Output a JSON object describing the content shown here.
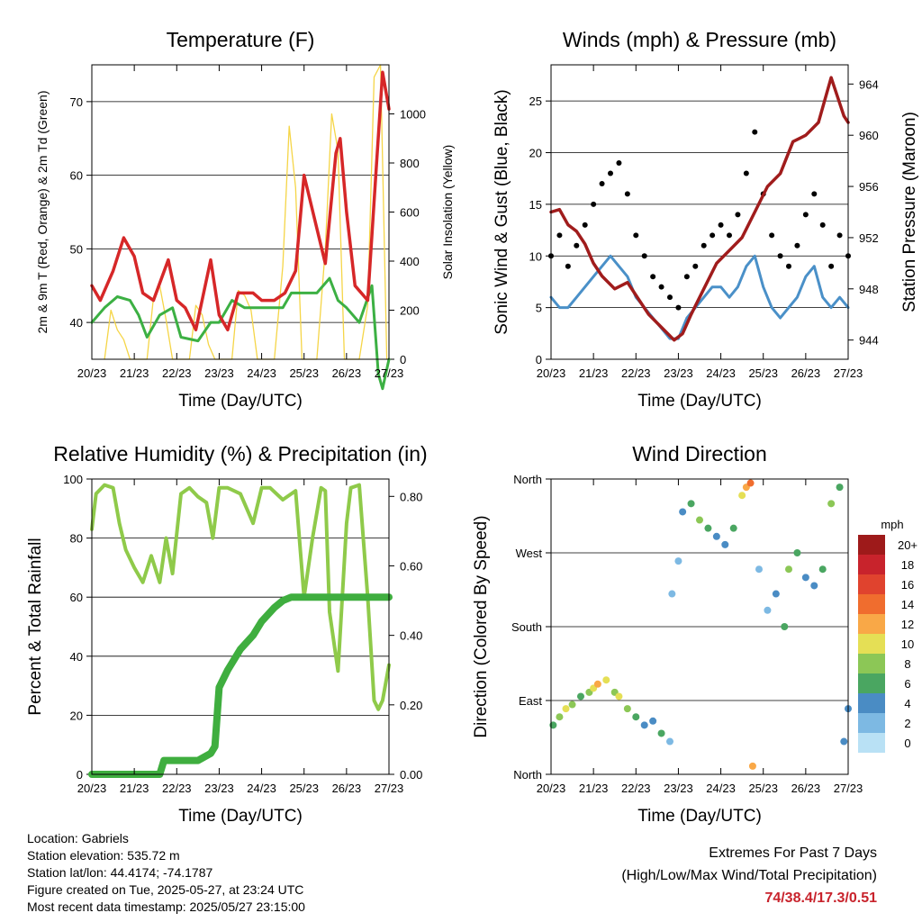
{
  "colors": {
    "temp": "#d62728",
    "dew": "#3cb043",
    "solar": "#f5d547",
    "gust": "#000000",
    "wind": "#4a90c8",
    "pressure": "#a01c1c",
    "rh": "#8fca4a",
    "precip": "#3fae3f"
  },
  "panels": {
    "temperature": {
      "title": "Temperature (F)",
      "ylabel_left": "2m & 9m T (Red, Orange) & 2m Td (Green)",
      "ylabel_right": "Solar Insolation (Yellow)",
      "xlabel": "Time (Day/UTC)",
      "left_ticks": [
        "40",
        "50",
        "60",
        "70"
      ],
      "right_ticks": [
        "0",
        "200",
        "400",
        "600",
        "800",
        "1000"
      ],
      "x_ticks": [
        "20/23",
        "21/23",
        "22/23",
        "23/23",
        "24/23",
        "25/23",
        "26/23",
        "27/23"
      ]
    },
    "winds": {
      "title": "Winds (mph) & Pressure (mb)",
      "ylabel_left": "Sonic Wind & Gust (Blue, Black)",
      "ylabel_right": "Station Pressure (Maroon)",
      "xlabel": "Time (Day/UTC)",
      "left_ticks": [
        "0",
        "5",
        "10",
        "15",
        "20",
        "25"
      ],
      "right_ticks": [
        "944",
        "948",
        "952",
        "956",
        "960",
        "964"
      ],
      "x_ticks": [
        "20/23",
        "21/23",
        "22/23",
        "23/23",
        "24/23",
        "25/23",
        "26/23",
        "27/23"
      ]
    },
    "humidity": {
      "title": "Relative Humidity (%) & Precipitation (in)",
      "ylabel_left": "Percent & Total Rainfall",
      "xlabel": "Time (Day/UTC)",
      "left_ticks": [
        "0",
        "20",
        "40",
        "60",
        "80",
        "100"
      ],
      "right_ticks": [
        "0.00",
        "0.20",
        "0.40",
        "0.60",
        "0.80"
      ],
      "x_ticks": [
        "20/23",
        "21/23",
        "22/23",
        "23/23",
        "24/23",
        "25/23",
        "26/23",
        "27/23"
      ]
    },
    "direction": {
      "title": "Wind Direction",
      "ylabel_left": "Direction (Colored By Speed)",
      "xlabel": "Time (Day/UTC)",
      "left_ticks": [
        "North",
        "East",
        "South",
        "West",
        "North"
      ],
      "x_ticks": [
        "20/23",
        "21/23",
        "22/23",
        "23/23",
        "24/23",
        "25/23",
        "26/23",
        "27/23"
      ],
      "legend_title": "mph",
      "legend_labels": [
        "20+",
        "18",
        "16",
        "14",
        "12",
        "10",
        "8",
        "6",
        "4",
        "2",
        "0"
      ],
      "legend_colors": [
        "#9e1a1a",
        "#c8232c",
        "#e0432e",
        "#f06d2e",
        "#f9a847",
        "#e5df55",
        "#8cc756",
        "#4aa661",
        "#4a8cc4",
        "#7db9e3",
        "#b9e1f5"
      ]
    }
  },
  "chart_data": [
    {
      "type": "line",
      "title": "Temperature (F)",
      "xlabel": "Time (Day/UTC)",
      "ylabel": "2m & 9m T (Red, Orange) & 2m Td (Green)",
      "y2label": "Solar Insolation (Yellow)",
      "ylim": [
        35,
        75
      ],
      "y2lim": [
        0,
        1200
      ],
      "xlim": [
        0,
        7
      ],
      "x_tick_labels": [
        "20/23",
        "21/23",
        "22/23",
        "23/23",
        "24/23",
        "25/23",
        "26/23",
        "27/23"
      ],
      "series": [
        {
          "name": "2m & 9m T (Red, Orange)",
          "axis": "left",
          "x": [
            0,
            0.2,
            0.5,
            0.75,
            1.0,
            1.2,
            1.45,
            1.8,
            2.0,
            2.2,
            2.45,
            2.8,
            3.0,
            3.2,
            3.45,
            3.8,
            4.0,
            4.3,
            4.55,
            4.8,
            5.0,
            5.25,
            5.5,
            5.75,
            5.85,
            6.0,
            6.2,
            6.5,
            6.7,
            6.85,
            7.0
          ],
          "y": [
            45,
            43,
            47,
            51.5,
            49,
            44,
            43,
            48.5,
            43,
            42,
            39,
            48.5,
            41,
            39,
            44,
            44,
            43,
            43,
            44,
            47,
            60,
            54,
            48,
            63,
            65,
            55,
            45,
            43,
            61,
            74,
            69
          ]
        },
        {
          "name": "2m Td (Green)",
          "axis": "left",
          "x": [
            0,
            0.3,
            0.6,
            0.9,
            1.1,
            1.3,
            1.6,
            1.9,
            2.1,
            2.5,
            2.8,
            3.0,
            3.3,
            3.6,
            3.9,
            4.2,
            4.5,
            4.7,
            5.0,
            5.3,
            5.6,
            5.8,
            6.0,
            6.3,
            6.6,
            6.75,
            6.85,
            7.0
          ],
          "y": [
            40,
            42,
            43.5,
            43,
            41,
            38,
            41,
            42,
            38,
            37.5,
            40,
            40,
            43,
            42,
            42,
            42,
            42,
            44,
            44,
            44,
            46,
            43,
            42,
            40,
            45,
            33,
            31,
            35
          ]
        },
        {
          "name": "Solar Insolation (Yellow)",
          "axis": "right",
          "x": [
            0.3,
            0.45,
            0.6,
            0.75,
            0.9,
            1.3,
            1.45,
            1.6,
            1.75,
            1.9,
            2.3,
            2.45,
            2.6,
            2.75,
            2.9,
            3.3,
            3.45,
            3.6,
            3.75,
            3.9,
            4.3,
            4.5,
            4.65,
            4.8,
            4.95,
            5.3,
            5.5,
            5.65,
            5.8,
            5.95,
            6.3,
            6.5,
            6.65,
            6.8,
            6.95
          ],
          "y": [
            0,
            200,
            120,
            80,
            0,
            0,
            250,
            300,
            160,
            0,
            0,
            220,
            180,
            60,
            0,
            0,
            280,
            260,
            200,
            0,
            0,
            380,
            950,
            700,
            0,
            0,
            450,
            1000,
            850,
            0,
            0,
            220,
            1150,
            1200,
            0
          ]
        }
      ]
    },
    {
      "type": "line",
      "title": "Winds (mph) & Pressure (mb)",
      "xlabel": "Time (Day/UTC)",
      "ylabel": "Sonic Wind & Gust (Blue, Black)",
      "y2label": "Station Pressure (Maroon)",
      "ylim": [
        0,
        28.5
      ],
      "y2lim": [
        942.5,
        965.5
      ],
      "xlim": [
        0,
        7
      ],
      "x_tick_labels": [
        "20/23",
        "21/23",
        "22/23",
        "23/23",
        "24/23",
        "25/23",
        "26/23",
        "27/23"
      ],
      "series": [
        {
          "name": "Gust (Black)",
          "axis": "left",
          "kind": "scatter",
          "x": [
            0,
            0.2,
            0.4,
            0.6,
            0.8,
            1.0,
            1.2,
            1.4,
            1.6,
            1.8,
            2.0,
            2.2,
            2.4,
            2.6,
            2.8,
            3.0,
            3.2,
            3.4,
            3.6,
            3.8,
            4.0,
            4.2,
            4.4,
            4.6,
            4.8,
            5.0,
            5.2,
            5.4,
            5.6,
            5.8,
            6.0,
            6.2,
            6.4,
            6.6,
            6.8,
            7.0
          ],
          "y": [
            10,
            12,
            9,
            11,
            13,
            15,
            17,
            18,
            19,
            16,
            12,
            10,
            8,
            7,
            6,
            5,
            8,
            9,
            11,
            12,
            13,
            12,
            14,
            18,
            22,
            16,
            12,
            10,
            9,
            11,
            14,
            16,
            13,
            9,
            12,
            10
          ]
        },
        {
          "name": "Sonic Wind (Blue)",
          "axis": "left",
          "x": [
            0,
            0.2,
            0.4,
            0.6,
            0.8,
            1.0,
            1.2,
            1.4,
            1.6,
            1.8,
            2.0,
            2.2,
            2.4,
            2.6,
            2.8,
            3.0,
            3.2,
            3.4,
            3.6,
            3.8,
            4.0,
            4.2,
            4.4,
            4.6,
            4.8,
            5.0,
            5.2,
            5.4,
            5.6,
            5.8,
            6.0,
            6.2,
            6.4,
            6.6,
            6.8,
            7.0
          ],
          "y": [
            6,
            5,
            5,
            6,
            7,
            8,
            9,
            10,
            9,
            8,
            6,
            5,
            4,
            3,
            2,
            2,
            4,
            5,
            6,
            7,
            7,
            6,
            7,
            9,
            10,
            7,
            5,
            4,
            5,
            6,
            8,
            9,
            6,
            5,
            6,
            5
          ]
        },
        {
          "name": "Station Pressure (Maroon)",
          "axis": "right",
          "x": [
            0,
            0.2,
            0.4,
            0.6,
            0.8,
            1.0,
            1.2,
            1.5,
            1.8,
            2.0,
            2.3,
            2.6,
            2.9,
            3.1,
            3.3,
            3.6,
            3.9,
            4.2,
            4.5,
            4.8,
            5.1,
            5.4,
            5.7,
            6.0,
            6.3,
            6.6,
            6.75,
            6.9,
            7.0
          ],
          "y": [
            954,
            954.2,
            953,
            952.5,
            951.5,
            950,
            949,
            948,
            948.5,
            947.5,
            946,
            945,
            944,
            944.5,
            946,
            948,
            950,
            951,
            952,
            954,
            956,
            957,
            959.5,
            960,
            961,
            964.5,
            963,
            961.5,
            961
          ]
        }
      ]
    },
    {
      "type": "line",
      "title": "Relative Humidity (%) & Precipitation (in)",
      "xlabel": "Time (Day/UTC)",
      "ylabel": "Percent & Total Rainfall",
      "ylim": [
        0,
        100
      ],
      "y2lim": [
        0,
        0.85
      ],
      "xlim": [
        0,
        7
      ],
      "x_tick_labels": [
        "20/23",
        "21/23",
        "22/23",
        "23/23",
        "24/23",
        "25/23",
        "26/23",
        "27/23"
      ],
      "series": [
        {
          "name": "Relative Humidity",
          "axis": "left",
          "x": [
            0,
            0.1,
            0.3,
            0.5,
            0.65,
            0.8,
            1.0,
            1.2,
            1.4,
            1.6,
            1.75,
            1.9,
            2.1,
            2.3,
            2.5,
            2.7,
            2.85,
            3.0,
            3.2,
            3.5,
            3.8,
            4.0,
            4.2,
            4.5,
            4.8,
            5.0,
            5.2,
            5.4,
            5.5,
            5.6,
            5.8,
            6.0,
            6.1,
            6.3,
            6.5,
            6.65,
            6.75,
            6.85,
            7.0
          ],
          "y": [
            83,
            95,
            98,
            97,
            85,
            76,
            70,
            65,
            74,
            65,
            80,
            68,
            95,
            97,
            94,
            92,
            80,
            97,
            97,
            95,
            85,
            97,
            97,
            93,
            96,
            60,
            80,
            97,
            96,
            55,
            35,
            85,
            97,
            98,
            60,
            25,
            22,
            25,
            37
          ]
        },
        {
          "name": "Total Rainfall",
          "axis": "right",
          "x": [
            0,
            1.0,
            1.6,
            1.7,
            2.0,
            2.5,
            2.8,
            2.9,
            3.0,
            3.2,
            3.5,
            3.8,
            4.0,
            4.3,
            4.5,
            4.7,
            5.0,
            6.0,
            7.0
          ],
          "y": [
            0,
            0,
            0,
            0.04,
            0.04,
            0.04,
            0.06,
            0.08,
            0.25,
            0.3,
            0.36,
            0.4,
            0.44,
            0.48,
            0.5,
            0.51,
            0.51,
            0.51,
            0.51
          ]
        }
      ]
    },
    {
      "type": "scatter",
      "title": "Wind Direction",
      "xlabel": "Time (Day/UTC)",
      "ylabel": "Direction (Colored By Speed)",
      "y_tick_labels": [
        "North",
        "East",
        "South",
        "West",
        "North"
      ],
      "ylim": [
        0,
        360
      ],
      "xlim": [
        0,
        7
      ],
      "x_tick_labels": [
        "20/23",
        "21/23",
        "22/23",
        "23/23",
        "24/23",
        "25/23",
        "26/23",
        "27/23"
      ],
      "legend": {
        "title": "mph",
        "labels": [
          "20+",
          "18",
          "16",
          "14",
          "12",
          "10",
          "8",
          "6",
          "4",
          "2",
          "0"
        ]
      },
      "series": [
        {
          "name": "Wind Direction",
          "x": [
            0.05,
            0.2,
            0.35,
            0.5,
            0.7,
            0.9,
            1.0,
            1.1,
            1.3,
            1.5,
            1.6,
            1.8,
            2.0,
            2.2,
            2.4,
            2.6,
            2.8,
            2.85,
            3.0,
            3.1,
            3.3,
            3.5,
            3.7,
            3.9,
            4.1,
            4.3,
            4.5,
            4.6,
            4.7,
            4.75,
            4.9,
            5.1,
            5.3,
            5.5,
            5.6,
            5.8,
            6.0,
            6.2,
            6.4,
            6.6,
            6.8,
            6.9,
            7.0
          ],
          "y": [
            60,
            70,
            80,
            85,
            95,
            100,
            105,
            110,
            115,
            100,
            95,
            80,
            70,
            60,
            65,
            50,
            40,
            220,
            260,
            320,
            330,
            310,
            300,
            290,
            280,
            300,
            340,
            350,
            355,
            10,
            250,
            200,
            220,
            180,
            250,
            270,
            240,
            230,
            250,
            330,
            350,
            40,
            80
          ],
          "speed": [
            6,
            8,
            10,
            8,
            6,
            8,
            10,
            12,
            10,
            8,
            10,
            8,
            6,
            4,
            4,
            6,
            2,
            2,
            2,
            4,
            6,
            8,
            6,
            4,
            4,
            6,
            10,
            12,
            14,
            12,
            2,
            2,
            4,
            6,
            8,
            6,
            4,
            4,
            6,
            8,
            6,
            4,
            4
          ]
        }
      ]
    }
  ],
  "info": {
    "location": "Location: Gabriels",
    "elevation": "Station elevation: 535.72 m",
    "latlon": "Station lat/lon: 44.4174; -74.1787",
    "created": "Figure created on Tue, 2025-05-27, at 23:24 UTC",
    "recent": "Most recent data timestamp: 2025/05/27 23:15:00",
    "extremes_title": "Extremes For Past 7 Days",
    "extremes_sub": "(High/Low/Max Wind/Total Precipitation)",
    "extremes_value": "74/38.4/17.3/0.51"
  }
}
